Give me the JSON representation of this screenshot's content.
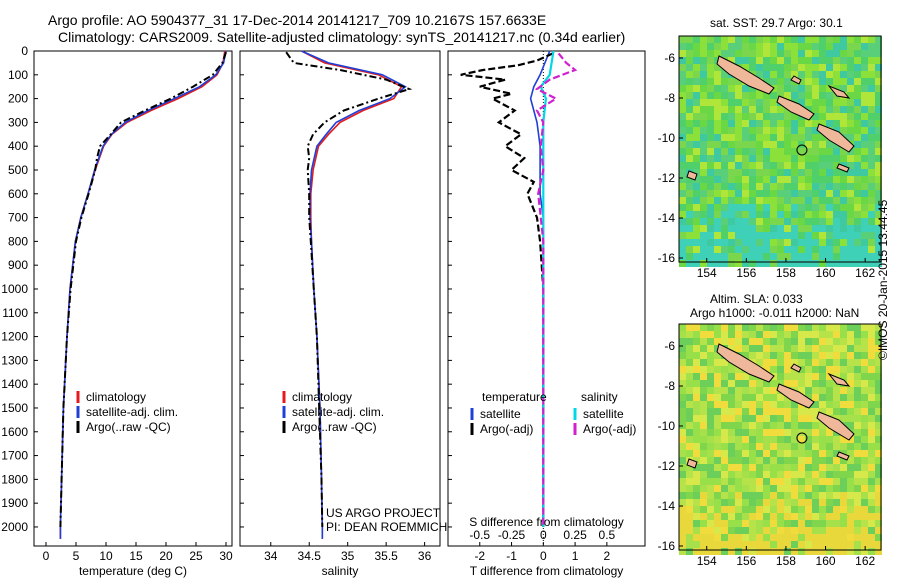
{
  "header": {
    "line1": "Argo profile: AO 5904377_31 17-Dec-2014 20141217_709 10.2167S 157.6633E",
    "line2": "Climatology: CARS2009. Satellite-adjusted climatology: synTS_20141217.nc (0.34d earlier)"
  },
  "colors": {
    "climatology": "#e41a1c",
    "satellite": "#1f3fd6",
    "argo": "#000000",
    "sat_salinity": "#00d8e8",
    "argo_salinity": "#d020d0",
    "land": "#f0b89a"
  },
  "chart_data": [
    {
      "type": "line",
      "id": "temperature",
      "xlabel": "temperature (deg C)",
      "ylabel": "",
      "xlim": [
        -2,
        31
      ],
      "ylim": [
        2080,
        0
      ],
      "xticks": [
        0,
        5,
        10,
        15,
        20,
        25,
        30
      ],
      "yticks": [
        0,
        100,
        200,
        300,
        400,
        500,
        600,
        700,
        800,
        900,
        1000,
        1100,
        1200,
        1300,
        1400,
        1500,
        1600,
        1700,
        1800,
        1900,
        2000
      ],
      "legend": [
        "climatology",
        "satellite-adj. clim.",
        "Argo(..raw -QC)"
      ],
      "series": [
        {
          "name": "climatology",
          "depth": [
            0,
            50,
            100,
            150,
            200,
            250,
            300,
            350,
            400,
            500,
            600,
            700,
            800,
            1000,
            1200,
            1500,
            1800,
            2000,
            2050
          ],
          "values": [
            29.8,
            29.5,
            28.5,
            26.0,
            22.0,
            17.5,
            13.5,
            11.0,
            9.6,
            8.2,
            7.0,
            5.8,
            4.9,
            4.0,
            3.5,
            2.9,
            2.6,
            2.4,
            2.4
          ]
        },
        {
          "name": "satellite-adj. clim.",
          "depth": [
            0,
            50,
            100,
            150,
            200,
            250,
            300,
            350,
            400,
            500,
            600,
            700,
            800,
            1000,
            1200,
            1500,
            1800,
            2000,
            2050
          ],
          "values": [
            30.0,
            29.6,
            28.3,
            25.6,
            21.4,
            17.0,
            13.2,
            10.9,
            9.5,
            8.1,
            7.0,
            5.8,
            4.9,
            4.0,
            3.5,
            2.9,
            2.6,
            2.4,
            2.4
          ]
        },
        {
          "name": "Argo(..raw -QC)",
          "depth": [
            5,
            50,
            100,
            150,
            200,
            250,
            300,
            350,
            400,
            450,
            500,
            600,
            700,
            800,
            1000,
            1200,
            1500,
            1800,
            2000
          ],
          "values": [
            30.0,
            29.4,
            27.8,
            24.5,
            20.8,
            16.5,
            12.5,
            10.8,
            9.0,
            8.5,
            8.2,
            7.1,
            5.9,
            5.0,
            4.1,
            3.5,
            2.9,
            2.6,
            2.4
          ]
        }
      ]
    },
    {
      "type": "line",
      "id": "salinity",
      "xlabel": "salinity",
      "ylabel": "",
      "xlim": [
        33.6,
        36.2
      ],
      "ylim": [
        2080,
        0
      ],
      "xticks": [
        34,
        34.5,
        35,
        35.5,
        36
      ],
      "legend": [
        "climatology",
        "satellite-adj. clim.",
        "Argo(..raw -QC)"
      ],
      "series": [
        {
          "name": "climatology",
          "depth": [
            0,
            50,
            100,
            150,
            200,
            250,
            300,
            350,
            400,
            500,
            600,
            700,
            800,
            1000,
            1200,
            1500,
            1800,
            2000,
            2050
          ],
          "values": [
            34.4,
            34.7,
            35.4,
            35.7,
            35.6,
            35.2,
            34.9,
            34.75,
            34.62,
            34.55,
            34.52,
            34.52,
            34.53,
            34.56,
            34.6,
            34.64,
            34.66,
            34.67,
            34.67
          ]
        },
        {
          "name": "satellite-adj. clim.",
          "depth": [
            0,
            50,
            100,
            150,
            200,
            250,
            300,
            350,
            400,
            500,
            600,
            700,
            800,
            1000,
            1200,
            1500,
            1800,
            2000,
            2050
          ],
          "values": [
            34.4,
            34.75,
            35.45,
            35.75,
            35.55,
            35.15,
            34.85,
            34.72,
            34.6,
            34.53,
            34.51,
            34.51,
            34.53,
            34.56,
            34.6,
            34.64,
            34.66,
            34.67,
            34.67
          ]
        },
        {
          "name": "Argo(..raw -QC)",
          "depth": [
            5,
            50,
            80,
            120,
            160,
            200,
            250,
            300,
            350,
            400,
            450,
            500,
            600,
            700,
            800,
            1000,
            1200,
            1500,
            1800,
            2000
          ],
          "values": [
            34.2,
            34.3,
            34.9,
            35.5,
            35.8,
            35.4,
            34.95,
            34.7,
            34.55,
            34.48,
            34.5,
            34.48,
            34.5,
            34.5,
            34.52,
            34.56,
            34.6,
            34.63,
            34.66,
            34.67
          ]
        }
      ]
    },
    {
      "type": "line",
      "id": "difference",
      "xlabel": "T difference from climatology",
      "x2label": "S difference from climatology",
      "xlim": [
        -3,
        3.2
      ],
      "ylim": [
        2080,
        0
      ],
      "xticks": [
        "-2",
        "-1",
        "0",
        "1",
        "2"
      ],
      "x2ticks": [
        "-0.5",
        "-0.25",
        "0",
        "0.25",
        "0.5"
      ],
      "legend_titles": [
        "temperature",
        "salinity"
      ],
      "legend": [
        "satellite",
        "Argo(-adj)",
        "satellite",
        "Argo(-adj)"
      ],
      "series": [
        {
          "name": "T satellite",
          "depth": [
            0,
            100,
            150,
            200,
            300,
            400,
            500,
            600,
            700,
            800,
            1000,
            1500,
            2000
          ],
          "values": [
            0.2,
            -0.1,
            -0.3,
            -0.4,
            -0.2,
            -0.1,
            -0.1,
            -0.1,
            0,
            0,
            0,
            0,
            0
          ]
        },
        {
          "name": "T Argo(-adj)",
          "depth": [
            10,
            40,
            60,
            80,
            100,
            120,
            150,
            180,
            200,
            250,
            300,
            350,
            400,
            450,
            500,
            550,
            600,
            700,
            800,
            900,
            1000,
            1200,
            1500,
            1800,
            2000
          ],
          "values": [
            0.3,
            -0.2,
            -0.8,
            -1.9,
            -2.6,
            -1.2,
            -2.0,
            -1.0,
            -1.6,
            -0.9,
            -1.4,
            -0.7,
            -1.2,
            -0.6,
            -1.0,
            -0.3,
            -0.5,
            -0.2,
            -0.1,
            -0.05,
            0,
            0,
            0,
            0,
            0
          ]
        },
        {
          "name": "S satellite",
          "depth": [
            0,
            100,
            150,
            200,
            300,
            500,
            800,
            1000,
            1500,
            2000
          ],
          "values": [
            0.08,
            0.05,
            -0.02,
            0.02,
            0,
            0,
            0,
            0,
            0,
            0
          ]
        },
        {
          "name": "S Argo(-adj)",
          "depth": [
            10,
            50,
            80,
            120,
            160,
            200,
            250,
            300,
            400,
            500,
            600,
            700,
            800,
            1000,
            1500,
            2000
          ],
          "values": [
            0.12,
            0.18,
            0.25,
            0.05,
            -0.05,
            0.1,
            -0.05,
            0.0,
            -0.02,
            0.0,
            -0.04,
            -0.02,
            0,
            0,
            0,
            0
          ]
        }
      ]
    }
  ],
  "maps": {
    "sst": {
      "title": "sat. SST: 29.7  Argo: 30.1",
      "xticks": [
        "154",
        "156",
        "158",
        "160",
        "162"
      ],
      "yticks": [
        "-6",
        "-8",
        "-10",
        "-12",
        "-14",
        "-16"
      ]
    },
    "sla": {
      "title1": "Altim. SLA: 0.033",
      "title2": "Argo h1000: -0.011 h2000: NaN",
      "xticks": [
        "154",
        "156",
        "158",
        "160",
        "162"
      ],
      "yticks": [
        "-6",
        "-8",
        "-10",
        "-12",
        "-14",
        "-16"
      ]
    }
  },
  "credits": {
    "line1": "US ARGO PROJECT",
    "line2": "PI: DEAN ROEMMICH"
  },
  "stamp": "©IMOS 20-Jan-2015 13:44:45"
}
